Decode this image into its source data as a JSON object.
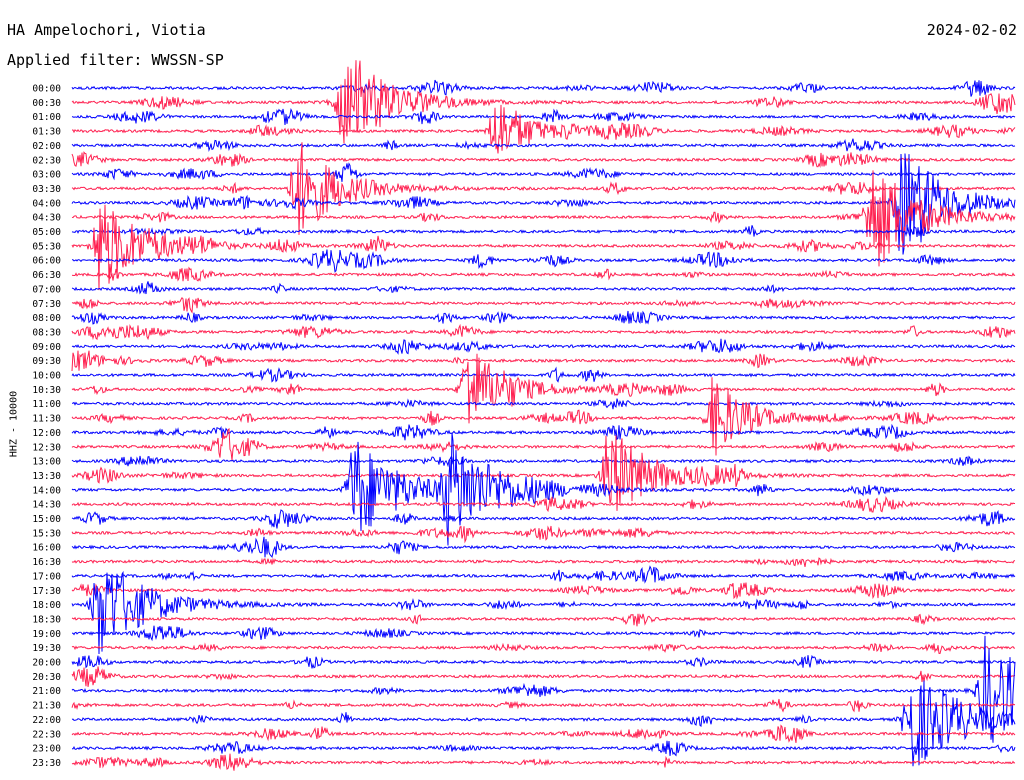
{
  "header": {
    "station": "HA Ampelochori, Viotia",
    "filter": "Applied filter: WWSSN-SP",
    "date": "2024-02-02"
  },
  "chart_data": {
    "type": "line",
    "title": "HA Ampelochori, Viotia",
    "subtitle": "Applied filter: WWSSN-SP",
    "date": "2024-02-02",
    "ylabel": "HHZ - 10000",
    "tick_labels": [
      "00:00",
      "00:30",
      "01:00",
      "01:30",
      "02:00",
      "02:30",
      "03:00",
      "03:30",
      "04:00",
      "04:30",
      "05:00",
      "05:30",
      "06:00",
      "06:30",
      "07:00",
      "07:30",
      "08:00",
      "08:30",
      "09:00",
      "09:30",
      "10:00",
      "10:30",
      "11:00",
      "11:30",
      "12:00",
      "12:30",
      "13:00",
      "13:30",
      "14:00",
      "14:30",
      "15:00",
      "15:30",
      "16:00",
      "16:30",
      "17:00",
      "17:30",
      "18:00",
      "18:30",
      "19:00",
      "19:30",
      "20:00",
      "20:30",
      "21:00",
      "21:30",
      "22:00",
      "22:30",
      "23:00",
      "23:30"
    ],
    "trace_colors": [
      "#0000ff",
      "#ff2050"
    ],
    "grid": false,
    "events": [
      {
        "t": "00:30",
        "x_frac": 0.29,
        "amp": 1.0
      },
      {
        "t": "01:30",
        "x_frac": 0.45,
        "amp": 0.6
      },
      {
        "t": "03:30",
        "x_frac": 0.24,
        "amp": 0.9
      },
      {
        "t": "04:00",
        "x_frac": 0.88,
        "amp": 1.0
      },
      {
        "t": "04:30",
        "x_frac": 0.85,
        "amp": 1.0
      },
      {
        "t": "05:30",
        "x_frac": 0.03,
        "amp": 0.9
      },
      {
        "t": "10:30",
        "x_frac": 0.42,
        "amp": 0.8
      },
      {
        "t": "11:30",
        "x_frac": 0.68,
        "amp": 0.7
      },
      {
        "t": "13:30",
        "x_frac": 0.57,
        "amp": 0.9
      },
      {
        "t": "14:00",
        "x_frac": 0.3,
        "amp": 1.0
      },
      {
        "t": "14:00",
        "x_frac": 0.4,
        "amp": 1.0
      },
      {
        "t": "18:00",
        "x_frac": 0.03,
        "amp": 1.0
      },
      {
        "t": "21:00",
        "x_frac": 0.97,
        "amp": 1.0
      },
      {
        "t": "22:00",
        "x_frac": 0.89,
        "amp": 1.0
      }
    ]
  }
}
